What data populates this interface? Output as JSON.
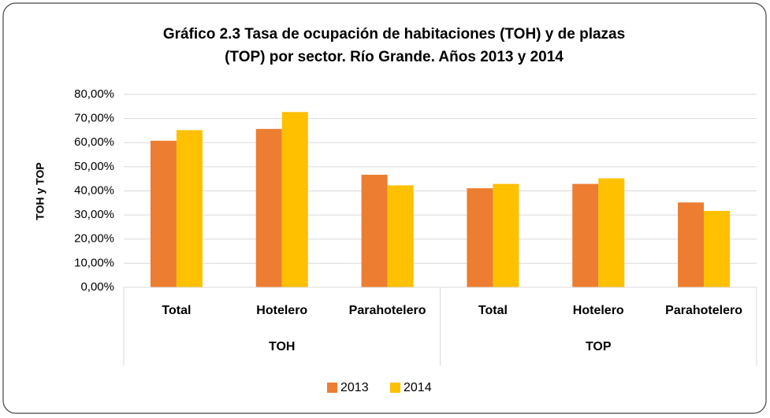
{
  "chart_data": {
    "type": "bar",
    "title": [
      "Gráfico 2.3 Tasa de ocupación de habitaciones (TOH) y de plazas",
      "(TOP) por sector. Río Grande. Años 2013 y 2014"
    ],
    "y_label": "TOH y TOP",
    "categories": [
      "Total",
      "Hotelero",
      "Parahotelero",
      "Total",
      "Hotelero",
      "Parahotelero"
    ],
    "groups": [
      "TOH",
      "TOP"
    ],
    "series": [
      {
        "name": "2013",
        "color": "#ed7d31",
        "values": [
          60.8,
          65.7,
          46.7,
          41.1,
          42.9,
          35.2
        ]
      },
      {
        "name": "2014",
        "color": "#ffc000",
        "values": [
          65.2,
          72.7,
          42.3,
          42.9,
          45.2,
          31.7
        ]
      }
    ],
    "ylim": [
      0,
      80
    ],
    "yticks": [
      {
        "value": 0,
        "label": "0,00%"
      },
      {
        "value": 10,
        "label": "10,00%"
      },
      {
        "value": 20,
        "label": "20,00%"
      },
      {
        "value": 30,
        "label": "30,00%"
      },
      {
        "value": 40,
        "label": "40,00%"
      },
      {
        "value": 50,
        "label": "50,00%"
      },
      {
        "value": 60,
        "label": "60,00%"
      },
      {
        "value": 70,
        "label": "70,00%"
      },
      {
        "value": 80,
        "label": "80,00%"
      }
    ],
    "grid": true,
    "legend": "bottom"
  }
}
